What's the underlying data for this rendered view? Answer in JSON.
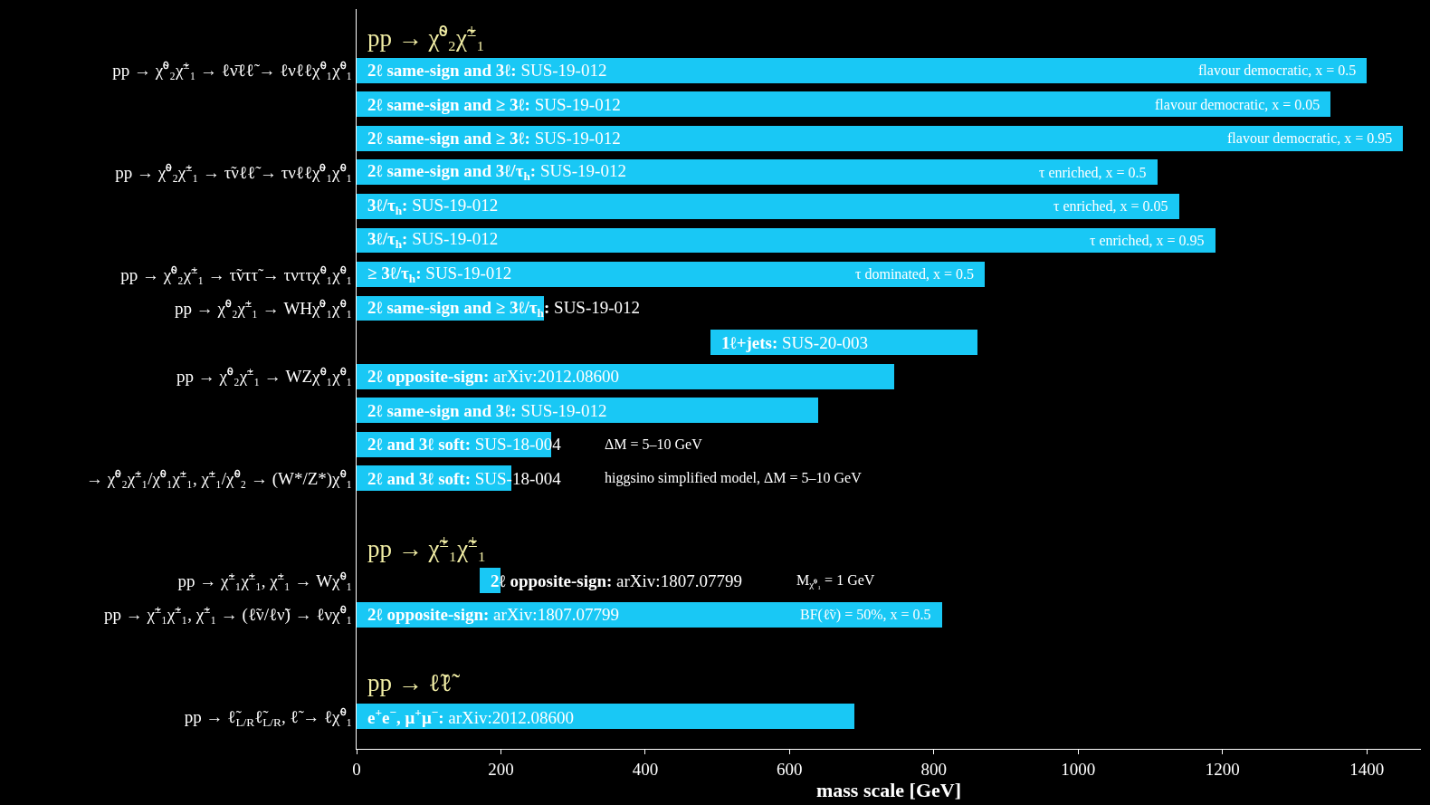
{
  "chart_data": {
    "type": "bar",
    "orientation": "horizontal",
    "xlabel": "mass scale [GeV]",
    "color": "#19c8f5",
    "categories": [
      null,
      "pp → χ̃⁰₂χ̃$^{±}$₁ → ℓν̄ℓℓ̃ → ℓνℓℓχ̃⁰₁χ̃⁰₁",
      null,
      null,
      "pp → χ̃⁰₂χ̃$^{±}$₁ → τ̃νℓℓ̃ → τνℓℓχ̃⁰₁χ̃⁰₁",
      null,
      null,
      "pp → χ̃⁰₂χ̃$^{±}$₁ → τ̃νττ̃ → τνττχ̃⁰₁χ̃⁰₁",
      "pp → χ̃⁰₂χ̃$^{±}$₁ → WHχ̃⁰₁χ̃⁰₁",
      null,
      "pp → χ̃⁰₂χ̃$^{±}$₁ → WZχ̃⁰₁χ̃⁰₁",
      null,
      null,
      "→ χ̃⁰₂χ̃$^{±}$₁/χ̃⁰₁χ̃$^{±}$₁, χ̃$^{±}$₁/χ̃⁰₂ → (W*/Z*)χ̃⁰₁",
      null,
      null,
      "pp → χ̃$^{±}$₁χ̃$^{±}$₁, χ̃$^{±}$₁ → Wχ̃⁰₁",
      "pp → χ̃$^{±}$₁χ̃$^{±}$₁, χ̃$^{±}$₁ → (ℓ̃ν/ℓν̃) → ℓνχ̃⁰₁",
      null,
      null,
      "pp → ℓ̃$_{L/R}$ℓ̃$_{L/R}$, ℓ̃ → ℓχ̃⁰₁"
    ],
    "values": [
      null,
      1400,
      1350,
      1450,
      1110,
      1140,
      1190,
      870,
      260,
      370,
      745,
      640,
      270,
      215,
      null,
      null,
      30,
      812,
      null,
      null,
      690
    ],
    "base": [
      null,
      0,
      0,
      0,
      0,
      0,
      0,
      0,
      0,
      490,
      0,
      0,
      0,
      0,
      null,
      null,
      170,
      0,
      null,
      null,
      0
    ],
    "xlim": [
      0,
      1475
    ],
    "xticks": [
      0,
      200,
      400,
      600,
      800,
      1000,
      1200,
      1400
    ],
    "annotations": [
      "pp → χ̃⁰₂χ̃$^{±}$₁",
      "pp → χ̃$^{±}$₁χ̃$^{±}$₁",
      "pp → ℓ̃ℓ̃",
      "2ℓ same-sign and 3ℓ: SUS-19-012",
      "2ℓ same-sign and ≥ 3ℓ: SUS-19-012",
      "2ℓ same-sign and ≥ 3ℓ: SUS-19-012",
      "2ℓ same-sign and 3ℓ/τ$_{h}$: SUS-19-012",
      "3ℓ/τ$_{h}$: SUS-19-012",
      "3ℓ/τ$_{h}$: SUS-19-012",
      "≥ 3ℓ/τ$_{h}$: SUS-19-012",
      "2ℓ same-sign and ≥ 3ℓ/τ$_{h}$: SUS-19-012",
      "1ℓ+jets: SUS-20-003",
      "2ℓ opposite-sign: arXiv:2012.08600",
      "2ℓ same-sign and 3ℓ: SUS-19-012",
      "2ℓ and 3ℓ soft: SUS-18-004",
      "2ℓ and 3ℓ soft: SUS-18-004",
      "2ℓ opposite-sign: arXiv:1807.07799",
      "2ℓ opposite-sign: arXiv:1807.07799",
      "e$^{+}$e$^{−}$, μ$^{+}$μ$^{−}$: arXiv:2012.08600",
      "ΔM = 5–10 GeV",
      "higgsino simplified model, ΔM = 5–10 GeV",
      "M$_{χ̃⁰₁}$ = 1 GeV",
      {
        "text": "flavour democratic, x = 0.5",
        "x": 1400
      },
      {
        "text": "flavour democratic, x = 0.05",
        "x": 1350
      },
      {
        "text": "flavour democratic, x = 0.95",
        "x": 1450
      },
      {
        "text": "τ enriched, x = 0.5",
        "x": 1110
      },
      {
        "text": "τ enriched, x = 0.05",
        "x": 1140
      },
      {
        "text": "τ enriched, x = 0.95",
        "x": 1190
      },
      {
        "text": "τ dominated, x = 0.5",
        "x": 870
      },
      {
        "text": "BF(ℓ̃ν) = 50%, x = 0.5",
        "x": 812
      }
    ]
  }
}
